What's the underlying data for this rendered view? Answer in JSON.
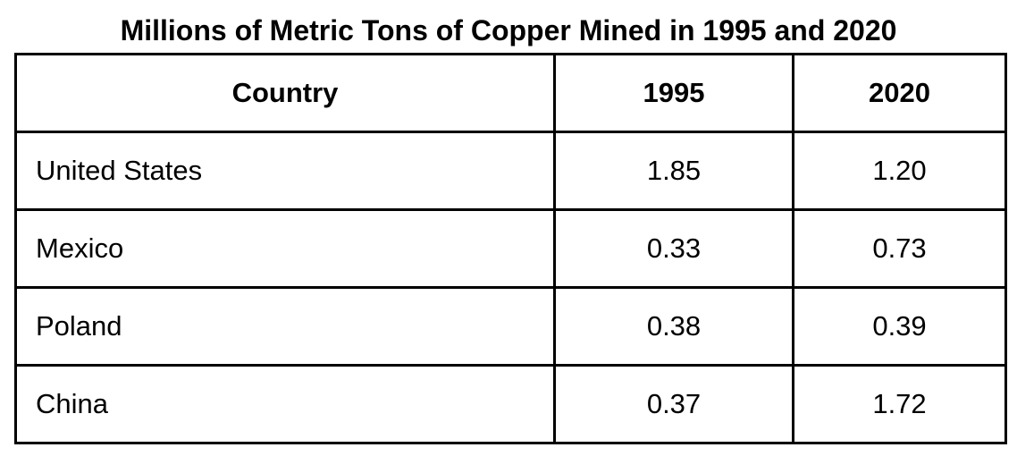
{
  "title": "Millions of Metric Tons of Copper Mined in 1995 and 2020",
  "table": {
    "header": [
      "Country",
      "1995",
      "2020"
    ],
    "rows": [
      [
        "United States",
        "1.85",
        "1.20"
      ],
      [
        "Mexico",
        "0.33",
        "0.73"
      ],
      [
        "Poland",
        "0.38",
        "0.39"
      ],
      [
        "China",
        "0.37",
        "1.72"
      ]
    ]
  }
}
